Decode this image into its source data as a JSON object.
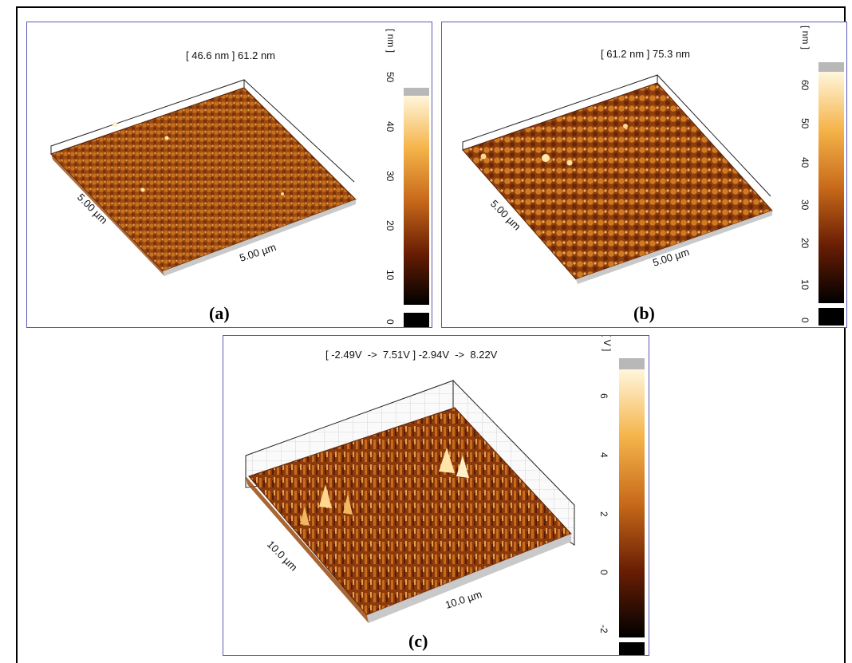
{
  "panels": [
    {
      "id": "a",
      "range_text": "[ 46.6 nm ] 61.2 nm",
      "caption": "(a)",
      "unit": "[ nm ]",
      "x_axis": "5.00 µm",
      "y_axis": "5.00 µm",
      "colorbar_ticks": [
        "50",
        "40",
        "30",
        "20",
        "10",
        "0"
      ]
    },
    {
      "id": "b",
      "range_text": "[ 61.2 nm ] 75.3 nm",
      "caption": "(b)",
      "unit": "[ nm ]",
      "x_axis": "5.00 µm",
      "y_axis": "5.00 µm",
      "colorbar_ticks": [
        "60",
        "50",
        "40",
        "30",
        "20",
        "10",
        "0"
      ]
    },
    {
      "id": "c",
      "range_text": "[ -2.49V  ->  7.51V ] -2.94V  ->  8.22V",
      "caption": "(c)",
      "unit": "[ V ]",
      "x_axis": "10.0 µm",
      "y_axis": "10.0 µm",
      "colorbar_ticks": [
        "6",
        "4",
        "2",
        "0",
        "-2"
      ]
    }
  ],
  "colors": {
    "panel_border": "#5a5ab4",
    "surface_dark": "#3a1204",
    "surface_mid": "#b85a14",
    "surface_light": "#f2c27a",
    "highlight": "#fff2d0"
  }
}
